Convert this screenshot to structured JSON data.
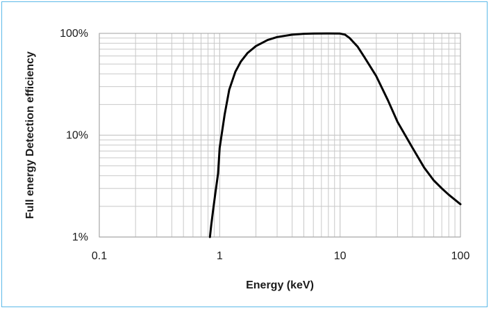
{
  "chart_data": {
    "type": "line",
    "title": "",
    "xlabel": "Energy (keV)",
    "ylabel": "Full energy Detection efficiency",
    "x_scale": "log",
    "y_scale": "log",
    "xlim": [
      0.1,
      100
    ],
    "ylim": [
      0.01,
      1
    ],
    "x_ticks": [
      0.1,
      1,
      10,
      100
    ],
    "x_tick_labels": [
      "0.1",
      "1",
      "10",
      "100"
    ],
    "y_ticks": [
      0.01,
      0.1,
      1
    ],
    "y_tick_labels": [
      "1%",
      "10%",
      "100%"
    ],
    "grid": true,
    "legend": "none",
    "colors": {
      "line": "#000000",
      "grid": "#c8c8c8",
      "border": "#5bb8e8"
    },
    "series": [
      {
        "x": [
          0.83,
          0.85,
          0.88,
          0.92,
          0.97,
          1.0,
          1.1,
          1.2,
          1.35,
          1.5,
          1.7,
          2.0,
          2.5,
          3.0,
          4.0,
          5.0,
          6.0,
          8.0,
          10.0,
          11.0,
          12.0,
          14.0,
          16.0,
          20.0,
          25.0,
          30.0,
          40.0,
          50.0,
          60.0,
          70.0,
          80.0,
          100.0
        ],
        "y": [
          0.01,
          0.013,
          0.018,
          0.027,
          0.042,
          0.075,
          0.16,
          0.28,
          0.42,
          0.53,
          0.64,
          0.75,
          0.86,
          0.92,
          0.97,
          0.99,
          0.995,
          0.998,
          0.995,
          0.97,
          0.9,
          0.74,
          0.58,
          0.38,
          0.22,
          0.135,
          0.075,
          0.048,
          0.036,
          0.03,
          0.026,
          0.021
        ]
      }
    ]
  }
}
